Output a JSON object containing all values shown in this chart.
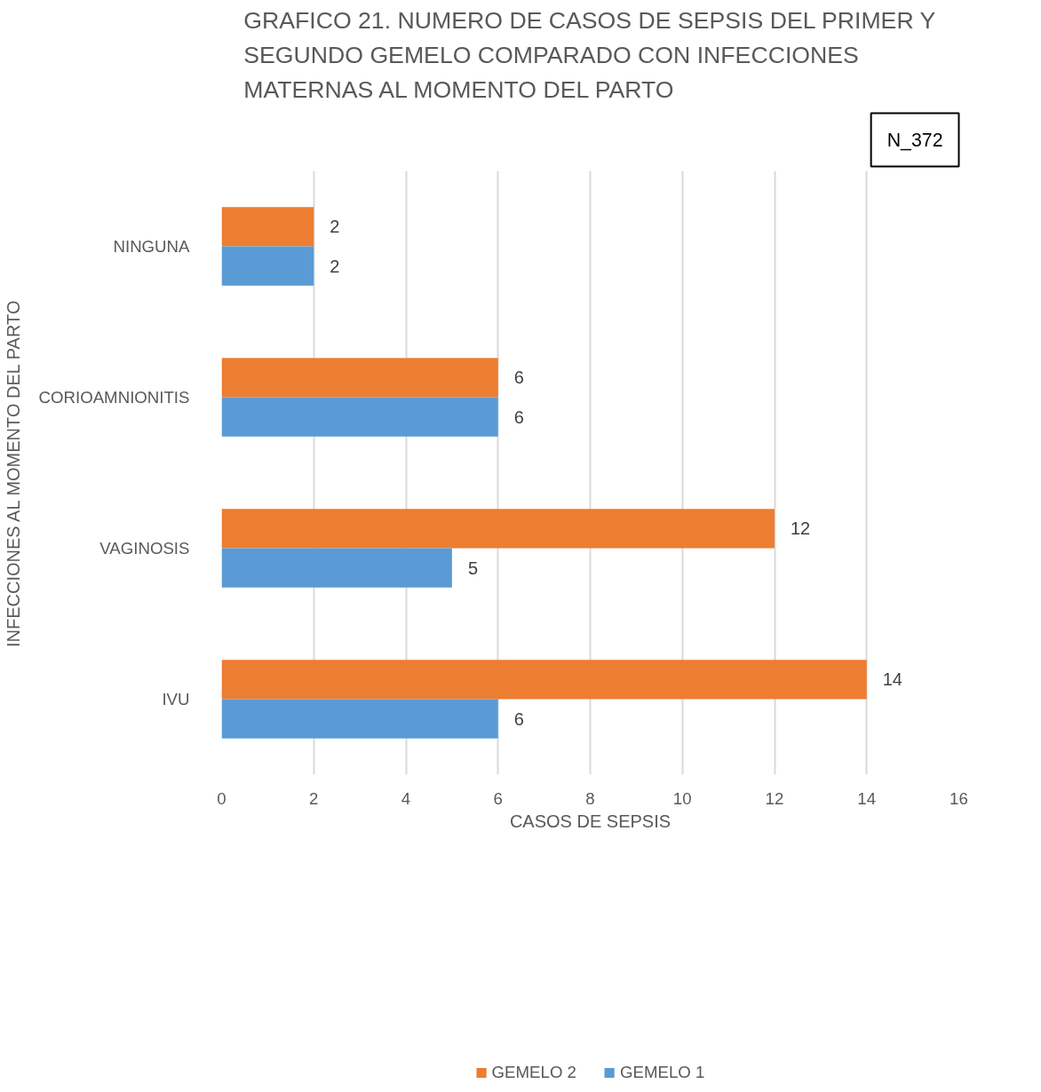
{
  "chart_data": {
    "type": "bar",
    "orientation": "horizontal",
    "title": "GRAFICO 21. NUMERO DE CASOS DE SEPSIS DEL PRIMER Y\nSEGUNDO GEMELO COMPARADO CON INFECCIONES\nMATERNAS AL MOMENTO DEL PARTO",
    "xlabel": "CASOS DE SEPSIS",
    "ylabel": "INFECCIONES AL MOMENTO DEL PARTO",
    "categories": [
      "NINGUNA",
      "CORIOAMNIONITIS",
      "VAGINOSIS",
      "IVU"
    ],
    "series": [
      {
        "name": "GEMELO 2",
        "color": "#ed7d31",
        "values": [
          2,
          6,
          12,
          14
        ]
      },
      {
        "name": "GEMELO 1",
        "color": "#5b9bd5",
        "values": [
          2,
          6,
          5,
          6
        ]
      }
    ],
    "xlim": [
      0,
      16
    ],
    "xticks": [
      0,
      2,
      4,
      6,
      8,
      10,
      12,
      14,
      16
    ],
    "grid": "x",
    "legend": "bottom",
    "data_labels": true,
    "annotations": [
      "N_372"
    ]
  }
}
